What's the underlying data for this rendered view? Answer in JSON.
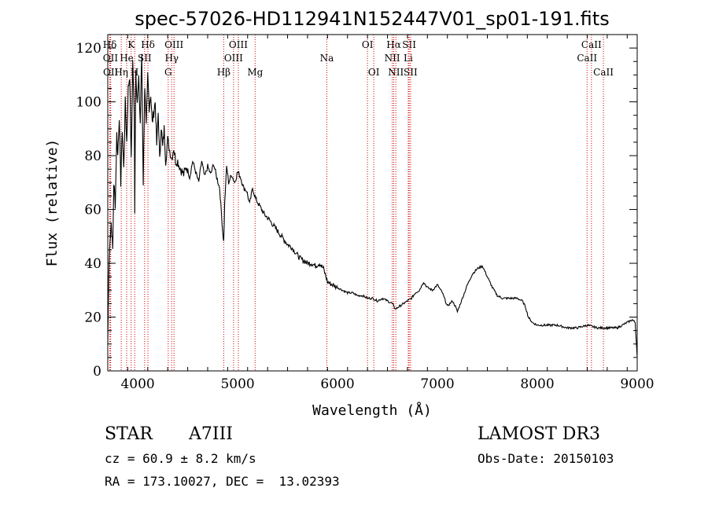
{
  "chart_data": {
    "type": "line",
    "title": "spec-57026-HD112941N152447V01_sp01-191.fits",
    "xlabel": "Wavelength (Å)",
    "ylabel": "Flux (relative)",
    "xlim": [
      3700,
      9000
    ],
    "ylim": [
      0,
      125
    ],
    "xticks": [
      4000,
      5000,
      6000,
      7000,
      8000,
      9000
    ],
    "yticks": [
      0,
      20,
      40,
      60,
      80,
      100,
      120
    ],
    "series": [
      {
        "name": "flux",
        "x": [
          3700,
          3710,
          3720,
          3735,
          3750,
          3760,
          3775,
          3790,
          3800,
          3815,
          3830,
          3845,
          3860,
          3875,
          3890,
          3905,
          3920,
          3935,
          3950,
          3965,
          3970,
          3980,
          3995,
          4010,
          4025,
          4040,
          4055,
          4070,
          4085,
          4100,
          4115,
          4130,
          4145,
          4160,
          4175,
          4190,
          4205,
          4220,
          4235,
          4250,
          4265,
          4280,
          4300,
          4320,
          4340,
          4360,
          4380,
          4400,
          4430,
          4460,
          4490,
          4520,
          4550,
          4580,
          4610,
          4640,
          4670,
          4700,
          4730,
          4760,
          4790,
          4820,
          4850,
          4861,
          4870,
          4890,
          4910,
          4940,
          4970,
          5000,
          5030,
          5060,
          5090,
          5120,
          5150,
          5180,
          5210,
          5240,
          5270,
          5300,
          5340,
          5380,
          5420,
          5460,
          5500,
          5540,
          5580,
          5620,
          5660,
          5700,
          5740,
          5780,
          5820,
          5860,
          5900,
          5950,
          6000,
          6050,
          6100,
          6150,
          6200,
          6250,
          6300,
          6350,
          6400,
          6450,
          6500,
          6550,
          6563,
          6580,
          6620,
          6660,
          6700,
          6740,
          6780,
          6820,
          6860,
          6900,
          6950,
          7000,
          7050,
          7100,
          7150,
          7180,
          7200,
          7250,
          7300,
          7350,
          7400,
          7450,
          7500,
          7550,
          7600,
          7650,
          7700,
          7750,
          7800,
          7850,
          7880,
          7910,
          7950,
          8000,
          8100,
          8200,
          8300,
          8400,
          8500,
          8600,
          8700,
          8800,
          8850,
          8900,
          8950,
          8980,
          9000
        ],
        "y": [
          10,
          35,
          48,
          55,
          45,
          70,
          62,
          88,
          80,
          95,
          70,
          90,
          75,
          100,
          85,
          105,
          110,
          78,
          115,
          95,
          60,
          112,
          100,
          108,
          92,
          118,
          70,
          106,
          90,
          110,
          98,
          103,
          92,
          96,
          100,
          84,
          96,
          78,
          91,
          83,
          90,
          78,
          86,
          82,
          79,
          83,
          78,
          78,
          75,
          73,
          76,
          72,
          78,
          74,
          70,
          78,
          72,
          76,
          73,
          77,
          72,
          68,
          52,
          48,
          62,
          76,
          70,
          73,
          70,
          74,
          72,
          68,
          67,
          62,
          68,
          64,
          62,
          60,
          58,
          57,
          55,
          53,
          51,
          49,
          47,
          46,
          44,
          42,
          41,
          40,
          40,
          39,
          40,
          38,
          33,
          32,
          31,
          30,
          29,
          29,
          28,
          28,
          27,
          27,
          26,
          27,
          26,
          25,
          24,
          23,
          24,
          25,
          26,
          27,
          29,
          30,
          33,
          31,
          30,
          32,
          29,
          24,
          26,
          24,
          22,
          27,
          32,
          36,
          38,
          39,
          35,
          31,
          28,
          27,
          27,
          27,
          27,
          26,
          24,
          20,
          18,
          17,
          17,
          17,
          16,
          16,
          17,
          16,
          16,
          16,
          17,
          18,
          19,
          18,
          5
        ]
      }
    ],
    "annotations": [
      {
        "label": "Hδ",
        "x": 3720,
        "row": 1
      },
      {
        "label": "OII",
        "x": 3727,
        "row": 2
      },
      {
        "label": "OII",
        "x": 3729,
        "row": 3
      },
      {
        "label": "K",
        "x": 3934,
        "row": 1
      },
      {
        "label": "He",
        "x": 3889,
        "row": 2
      },
      {
        "label": "Hη",
        "x": 3835,
        "row": 3
      },
      {
        "label": "Hδ",
        "x": 4102,
        "row": 1
      },
      {
        "label": "SII",
        "x": 4069,
        "row": 2
      },
      {
        "label": "H",
        "x": 3969,
        "row": 3
      },
      {
        "label": "OIII",
        "x": 4363,
        "row": 1
      },
      {
        "label": "Hγ",
        "x": 4340,
        "row": 2
      },
      {
        "label": "G",
        "x": 4305,
        "row": 3
      },
      {
        "label": "OIII",
        "x": 5007,
        "row": 1
      },
      {
        "label": "OIII",
        "x": 4959,
        "row": 2
      },
      {
        "label": "Hβ",
        "x": 4861,
        "row": 3
      },
      {
        "label": "Mg",
        "x": 5175,
        "row": 3
      },
      {
        "label": "Na",
        "x": 5893,
        "row": 2
      },
      {
        "label": "OI",
        "x": 6300,
        "row": 1
      },
      {
        "label": "OI",
        "x": 6363,
        "row": 3
      },
      {
        "label": "Hα",
        "x": 6563,
        "row": 1
      },
      {
        "label": "NII",
        "x": 6548,
        "row": 2
      },
      {
        "label": "NII",
        "x": 6584,
        "row": 3
      },
      {
        "label": "SII",
        "x": 6717,
        "row": 1
      },
      {
        "label": "Li",
        "x": 6708,
        "row": 2
      },
      {
        "label": "SII",
        "x": 6731,
        "row": 3
      },
      {
        "label": "CaII",
        "x": 8542,
        "row": 1
      },
      {
        "label": "CaII",
        "x": 8498,
        "row": 2
      },
      {
        "label": "CaII",
        "x": 8662,
        "row": 3
      }
    ]
  },
  "footer": {
    "object_type": "STAR",
    "subclass": "A7III",
    "survey": "LAMOST DR3",
    "cz": "cz = 60.9 ± 8.2 km/s",
    "obs_date": "Obs-Date: 20150103",
    "coords": "RA = 173.10027, DEC =  13.02393"
  },
  "colors": {
    "spectrum": "#000000",
    "line_marker": "#cc0000",
    "axis": "#000000"
  }
}
